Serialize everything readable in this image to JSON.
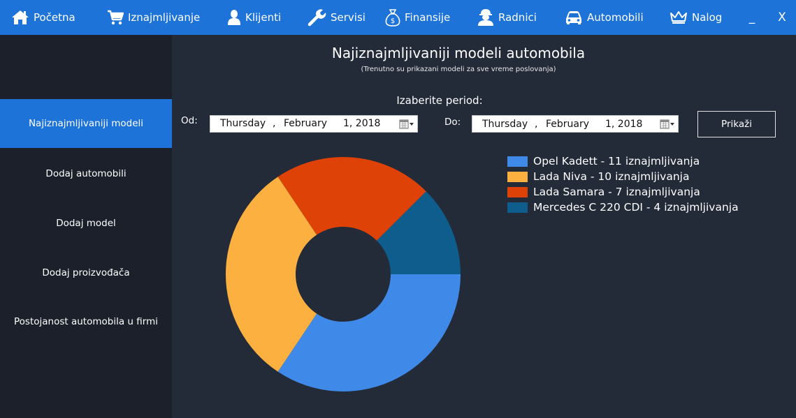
{
  "nav": {
    "items": [
      {
        "label": "Početna",
        "icon": "home-icon"
      },
      {
        "label": "Iznajmljivanje",
        "icon": "cart-icon"
      },
      {
        "label": "Klijenti",
        "icon": "person-icon"
      },
      {
        "label": "Servisi",
        "icon": "wrench-icon"
      },
      {
        "label": "Finansije",
        "icon": "money-bag-icon"
      },
      {
        "label": "Radnici",
        "icon": "worker-icon"
      },
      {
        "label": "Automobili",
        "icon": "car-icon"
      },
      {
        "label": "Nalog",
        "icon": "crown-icon"
      }
    ],
    "minimize": "_",
    "close": "X"
  },
  "sidebar": {
    "items": [
      {
        "label": "Najiznajmljivaniji modeli",
        "active": true
      },
      {
        "label": "Dodaj automobili",
        "active": false
      },
      {
        "label": "Dodaj model",
        "active": false
      },
      {
        "label": "Dodaj proizvođača",
        "active": false
      },
      {
        "label": "Postojanost automobila u firmi",
        "active": false
      }
    ]
  },
  "main": {
    "title": "Najiznajmljivaniji modeli automobila",
    "subtitle": "(Trenutno su prikazani modeli za sve vreme poslovanja)",
    "period_label": "Izaberite period:",
    "from": {
      "label": "Od:",
      "day": "Thursday",
      "comma": ",",
      "month": "February",
      "date_year": "1, 2018"
    },
    "to": {
      "label": "Do:",
      "day": "Thursday",
      "comma": ",",
      "month": "February",
      "date_year": "1, 2018"
    },
    "show_button": "Prikaži"
  },
  "colors": {
    "accent": "#1e73d8",
    "sidebar_bg": "#1b202b",
    "main_bg": "#232a38"
  },
  "chart_data": {
    "type": "pie",
    "style": "donut",
    "title": "",
    "legend_position": "right",
    "series": [
      {
        "name": "Opel Kadett - 11 iznajmljivanja",
        "category": "Opel Kadett",
        "value": 11,
        "color": "#3f8ae8"
      },
      {
        "name": "Lada Niva - 10 iznajmljivanja",
        "category": "Lada Niva",
        "value": 10,
        "color": "#fbb040"
      },
      {
        "name": "Lada Samara - 7 iznajmljivanja",
        "category": "Lada Samara",
        "value": 7,
        "color": "#df4207"
      },
      {
        "name": "Mercedes C 220 CDI - 4 iznajmljivanja",
        "category": "Mercedes C 220 CDI",
        "value": 4,
        "color": "#0e5d8c"
      }
    ]
  }
}
